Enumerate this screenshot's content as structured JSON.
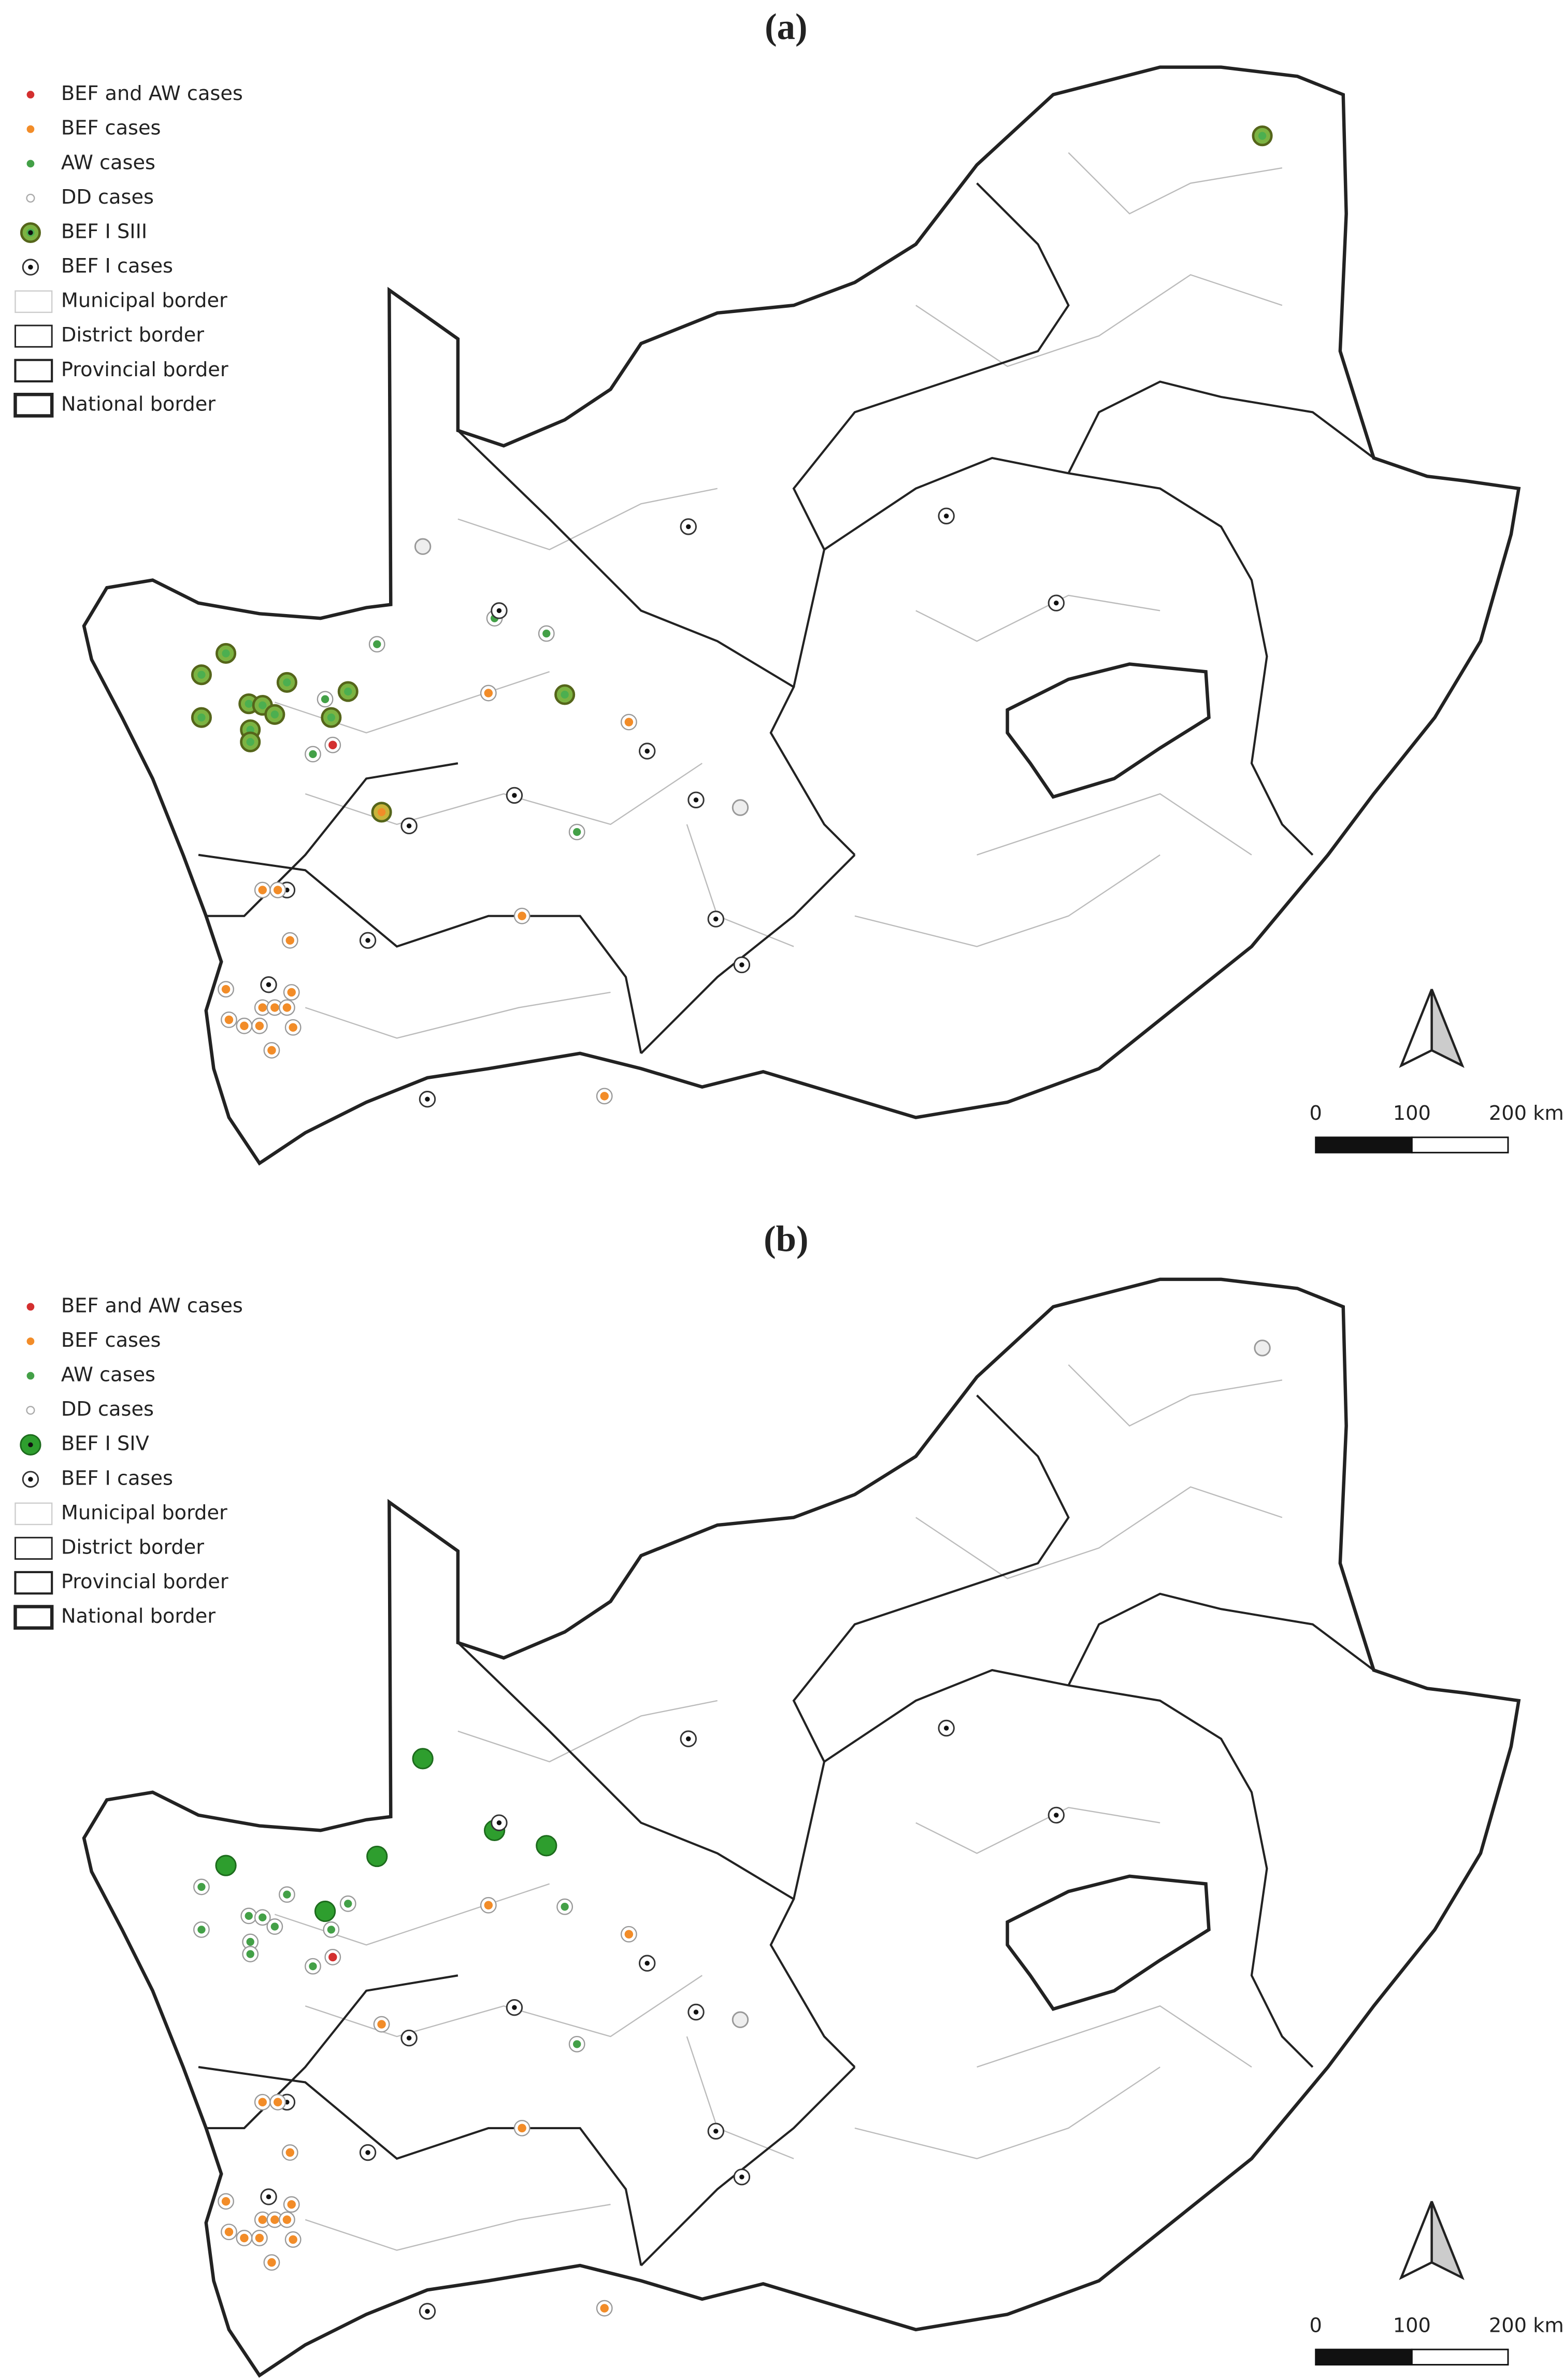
{
  "panels": [
    {
      "label": "(a)",
      "legend": [
        "BEF and AW cases",
        "BEF cases",
        "AW cases",
        "DD cases",
        "BEF I SIII",
        "BEF I cases",
        "Municipal border",
        "District border",
        "Provincial border",
        "National border"
      ],
      "scale": [
        "0",
        "100",
        "200 km"
      ]
    },
    {
      "label": "(b)",
      "legend": [
        "BEF and AW cases",
        "BEF cases",
        "AW cases",
        "DD cases",
        "BEF I SIV",
        "BEF I cases",
        "Municipal border",
        "District border",
        "Provincial border",
        "National border"
      ],
      "scale": [
        "0",
        "100",
        "200 km"
      ]
    }
  ]
}
